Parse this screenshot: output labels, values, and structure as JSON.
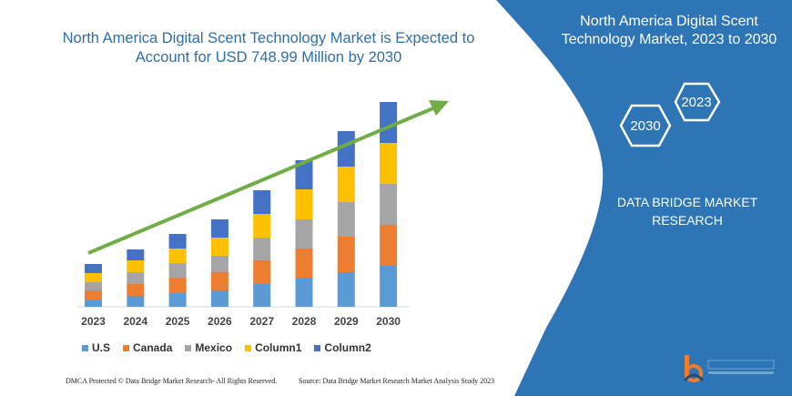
{
  "title": "North America Digital Scent Technology Market is Expected to Account for USD 748.99 Million by 2030",
  "side_panel": {
    "title": "North America Digital Scent Technology Market, 2023 to 2030",
    "hex_years": [
      "2023",
      "2030"
    ],
    "brand": "DATA BRIDGE MARKET RESEARCH",
    "panel_color": "#2e75b6"
  },
  "footer": {
    "copyright": "DMCA Protected © Data Bridge Market Research- All Rights Reserved.",
    "source": "Source: Data Bridge Market Research Market Analysis Study 2023"
  },
  "logo_text": "DATA BRIDGE",
  "chart_data": {
    "type": "bar",
    "stacked": true,
    "categories": [
      "2023",
      "2024",
      "2025",
      "2026",
      "2027",
      "2028",
      "2029",
      "2030"
    ],
    "series": [
      {
        "name": "U.S",
        "color": "#5b9bd5",
        "values": [
          8,
          12,
          15,
          18,
          25,
          32,
          38,
          45
        ]
      },
      {
        "name": "Canada",
        "color": "#ed7d31",
        "values": [
          10,
          13,
          17,
          20,
          26,
          32,
          39,
          45
        ]
      },
      {
        "name": "Mexico",
        "color": "#a5a5a5",
        "values": [
          9,
          13,
          16,
          18,
          25,
          32,
          38,
          45
        ]
      },
      {
        "name": "Column1",
        "color": "#ffc000",
        "values": [
          10,
          13,
          16,
          20,
          26,
          33,
          39,
          45
        ]
      },
      {
        "name": "Column2",
        "color": "#4472c4",
        "values": [
          10,
          12,
          16,
          20,
          26,
          32,
          39,
          45
        ]
      }
    ],
    "trend_arrow_color": "#70ad47",
    "grid": false,
    "y_axis_shown": false,
    "legend_position": "bottom"
  }
}
